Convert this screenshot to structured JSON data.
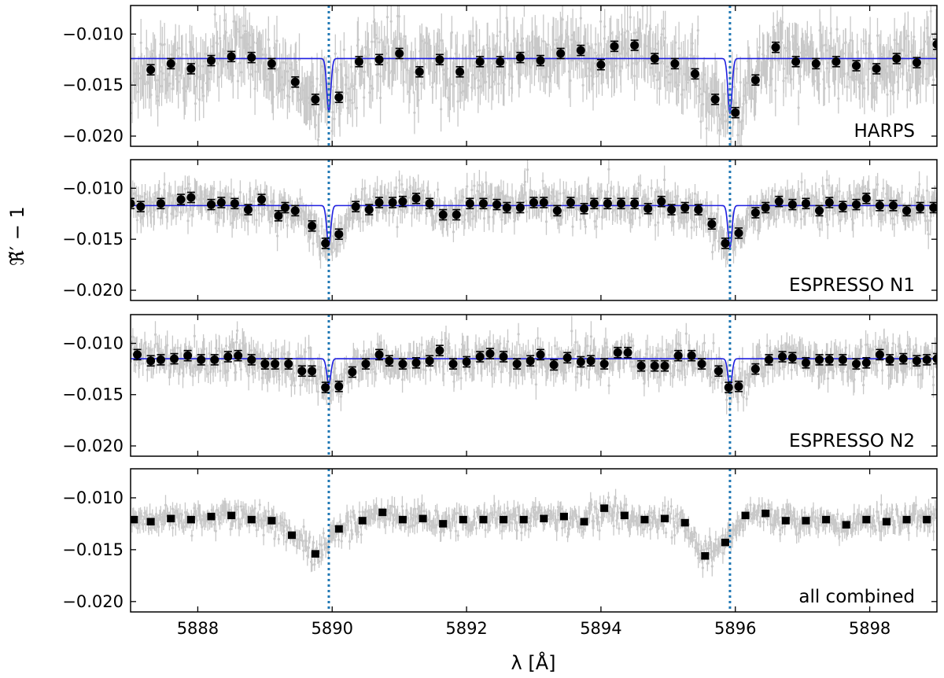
{
  "chart_data": {
    "type": "scatter",
    "xlabel": "λ [Å]",
    "ylabel": "ℜ̃′ − 1",
    "xlim": [
      5887.0,
      5899.0
    ],
    "ylim": [
      -0.021,
      -0.0072
    ],
    "x_ticks": [
      5888,
      5890,
      5892,
      5894,
      5896,
      5898
    ],
    "y_ticks": [
      -0.01,
      -0.015,
      -0.02
    ],
    "y_tick_labels": [
      "−0.010",
      "−0.015",
      "−0.020"
    ],
    "vertical_lines": [
      5889.95,
      5895.92
    ],
    "grid": false,
    "colors": {
      "raw": "#c8c8c8",
      "binned": "#000000",
      "model": "#1f1fe0",
      "vline": "#1f77b4"
    },
    "panels": [
      {
        "label": "HARPS",
        "model": {
          "baseline": -0.0124,
          "depths": [
            0.0052,
            0.0054
          ],
          "width": 0.03
        },
        "noise_sigma": 0.0028,
        "binned_err": 0.0005,
        "binned": [
          [
            5887.3,
            -0.0135
          ],
          [
            5887.6,
            -0.0129
          ],
          [
            5887.9,
            -0.0134
          ],
          [
            5888.2,
            -0.0126
          ],
          [
            5888.5,
            -0.0122
          ],
          [
            5888.8,
            -0.0123
          ],
          [
            5889.1,
            -0.0129
          ],
          [
            5889.45,
            -0.0147
          ],
          [
            5889.75,
            -0.0164
          ],
          [
            5890.1,
            -0.0162
          ],
          [
            5890.4,
            -0.0127
          ],
          [
            5890.7,
            -0.0125
          ],
          [
            5891.0,
            -0.0119
          ],
          [
            5891.3,
            -0.0137
          ],
          [
            5891.6,
            -0.0125
          ],
          [
            5891.9,
            -0.0137
          ],
          [
            5892.2,
            -0.0127
          ],
          [
            5892.5,
            -0.0127
          ],
          [
            5892.8,
            -0.0123
          ],
          [
            5893.1,
            -0.0126
          ],
          [
            5893.4,
            -0.0119
          ],
          [
            5893.7,
            -0.0116
          ],
          [
            5894.0,
            -0.013
          ],
          [
            5894.2,
            -0.0112
          ],
          [
            5894.5,
            -0.0111
          ],
          [
            5894.8,
            -0.0124
          ],
          [
            5895.1,
            -0.0129
          ],
          [
            5895.4,
            -0.0139
          ],
          [
            5895.7,
            -0.0164
          ],
          [
            5896.0,
            -0.0177
          ],
          [
            5896.3,
            -0.0145
          ],
          [
            5896.6,
            -0.0113
          ],
          [
            5896.9,
            -0.0127
          ],
          [
            5897.2,
            -0.0129
          ],
          [
            5897.5,
            -0.0127
          ],
          [
            5897.8,
            -0.0131
          ],
          [
            5898.1,
            -0.0134
          ],
          [
            5898.4,
            -0.0124
          ],
          [
            5898.7,
            -0.0128
          ],
          [
            5899.0,
            -0.011
          ]
        ]
      },
      {
        "label": "ESPRESSO N1",
        "model": {
          "baseline": -0.0117,
          "depths": [
            0.0039,
            0.0041
          ],
          "width": 0.03
        },
        "noise_sigma": 0.0016,
        "binned_err": 0.0005,
        "binned": [
          [
            5887.0,
            -0.0115
          ],
          [
            5887.15,
            -0.0118
          ],
          [
            5887.45,
            -0.0115
          ],
          [
            5887.75,
            -0.0111
          ],
          [
            5887.9,
            -0.0109
          ],
          [
            5888.2,
            -0.0116
          ],
          [
            5888.35,
            -0.0114
          ],
          [
            5888.55,
            -0.0115
          ],
          [
            5888.75,
            -0.0121
          ],
          [
            5888.95,
            -0.0111
          ],
          [
            5889.2,
            -0.0127
          ],
          [
            5889.3,
            -0.0119
          ],
          [
            5889.45,
            -0.0122
          ],
          [
            5889.7,
            -0.0137
          ],
          [
            5889.9,
            -0.0154
          ],
          [
            5890.1,
            -0.0145
          ],
          [
            5890.35,
            -0.0118
          ],
          [
            5890.55,
            -0.0121
          ],
          [
            5890.7,
            -0.0114
          ],
          [
            5890.9,
            -0.0114
          ],
          [
            5891.05,
            -0.0113
          ],
          [
            5891.25,
            -0.011
          ],
          [
            5891.45,
            -0.0115
          ],
          [
            5891.65,
            -0.0126
          ],
          [
            5891.85,
            -0.0126
          ],
          [
            5892.05,
            -0.0115
          ],
          [
            5892.25,
            -0.0115
          ],
          [
            5892.45,
            -0.0116
          ],
          [
            5892.6,
            -0.0119
          ],
          [
            5892.8,
            -0.0119
          ],
          [
            5893.0,
            -0.0114
          ],
          [
            5893.15,
            -0.0114
          ],
          [
            5893.35,
            -0.0122
          ],
          [
            5893.55,
            -0.0114
          ],
          [
            5893.75,
            -0.012
          ],
          [
            5893.9,
            -0.0115
          ],
          [
            5894.1,
            -0.0115
          ],
          [
            5894.3,
            -0.0115
          ],
          [
            5894.5,
            -0.0115
          ],
          [
            5894.7,
            -0.012
          ],
          [
            5894.9,
            -0.0113
          ],
          [
            5895.05,
            -0.0121
          ],
          [
            5895.25,
            -0.0119
          ],
          [
            5895.45,
            -0.0121
          ],
          [
            5895.65,
            -0.0135
          ],
          [
            5895.85,
            -0.0154
          ],
          [
            5896.05,
            -0.0144
          ],
          [
            5896.3,
            -0.0124
          ],
          [
            5896.45,
            -0.0119
          ],
          [
            5896.65,
            -0.0113
          ],
          [
            5896.85,
            -0.0116
          ],
          [
            5897.05,
            -0.0115
          ],
          [
            5897.25,
            -0.0122
          ],
          [
            5897.4,
            -0.0114
          ],
          [
            5897.6,
            -0.0118
          ],
          [
            5897.8,
            -0.0116
          ],
          [
            5897.95,
            -0.011
          ],
          [
            5898.15,
            -0.0117
          ],
          [
            5898.35,
            -0.0117
          ],
          [
            5898.55,
            -0.0122
          ],
          [
            5898.75,
            -0.0119
          ],
          [
            5898.95,
            -0.0119
          ]
        ]
      },
      {
        "label": "ESPRESSO N2",
        "model": {
          "baseline": -0.0115,
          "depths": [
            0.0025,
            0.0028
          ],
          "width": 0.03
        },
        "noise_sigma": 0.0016,
        "binned_err": 0.0005,
        "binned": [
          [
            5887.1,
            -0.0111
          ],
          [
            5887.3,
            -0.0117
          ],
          [
            5887.45,
            -0.0116
          ],
          [
            5887.65,
            -0.0115
          ],
          [
            5887.85,
            -0.0112
          ],
          [
            5888.05,
            -0.0116
          ],
          [
            5888.25,
            -0.0116
          ],
          [
            5888.45,
            -0.0113
          ],
          [
            5888.6,
            -0.0112
          ],
          [
            5888.8,
            -0.0116
          ],
          [
            5889.0,
            -0.012
          ],
          [
            5889.15,
            -0.012
          ],
          [
            5889.35,
            -0.012
          ],
          [
            5889.55,
            -0.0127
          ],
          [
            5889.7,
            -0.0127
          ],
          [
            5889.9,
            -0.0143
          ],
          [
            5890.1,
            -0.0142
          ],
          [
            5890.3,
            -0.0128
          ],
          [
            5890.5,
            -0.012
          ],
          [
            5890.7,
            -0.0111
          ],
          [
            5890.85,
            -0.0117
          ],
          [
            5891.05,
            -0.012
          ],
          [
            5891.25,
            -0.0119
          ],
          [
            5891.45,
            -0.0117
          ],
          [
            5891.6,
            -0.0107
          ],
          [
            5891.8,
            -0.012
          ],
          [
            5892.0,
            -0.0118
          ],
          [
            5892.2,
            -0.0113
          ],
          [
            5892.35,
            -0.011
          ],
          [
            5892.55,
            -0.0113
          ],
          [
            5892.75,
            -0.012
          ],
          [
            5892.95,
            -0.0117
          ],
          [
            5893.1,
            -0.0111
          ],
          [
            5893.3,
            -0.0121
          ],
          [
            5893.5,
            -0.0114
          ],
          [
            5893.7,
            -0.0118
          ],
          [
            5893.85,
            -0.0117
          ],
          [
            5894.05,
            -0.012
          ],
          [
            5894.25,
            -0.0109
          ],
          [
            5894.4,
            -0.0109
          ],
          [
            5894.6,
            -0.0122
          ],
          [
            5894.8,
            -0.0122
          ],
          [
            5894.95,
            -0.0122
          ],
          [
            5895.15,
            -0.0112
          ],
          [
            5895.35,
            -0.0112
          ],
          [
            5895.5,
            -0.012
          ],
          [
            5895.75,
            -0.0127
          ],
          [
            5895.9,
            -0.0143
          ],
          [
            5896.05,
            -0.0142
          ],
          [
            5896.3,
            -0.0125
          ],
          [
            5896.5,
            -0.0116
          ],
          [
            5896.7,
            -0.0113
          ],
          [
            5896.85,
            -0.0114
          ],
          [
            5897.05,
            -0.0119
          ],
          [
            5897.25,
            -0.0116
          ],
          [
            5897.4,
            -0.0116
          ],
          [
            5897.6,
            -0.0116
          ],
          [
            5897.8,
            -0.012
          ],
          [
            5897.95,
            -0.0119
          ],
          [
            5898.15,
            -0.0111
          ],
          [
            5898.3,
            -0.0116
          ],
          [
            5898.5,
            -0.0115
          ],
          [
            5898.7,
            -0.0117
          ],
          [
            5898.85,
            -0.0116
          ],
          [
            5899.0,
            -0.0115
          ]
        ]
      },
      {
        "label": "all combined",
        "model": null,
        "noise_sigma": 0.0011,
        "binned_err": 0.0003,
        "binned": [
          [
            5887.05,
            -0.0121
          ],
          [
            5887.3,
            -0.0123
          ],
          [
            5887.6,
            -0.012
          ],
          [
            5887.9,
            -0.0121
          ],
          [
            5888.2,
            -0.0118
          ],
          [
            5888.5,
            -0.0117
          ],
          [
            5888.8,
            -0.0121
          ],
          [
            5889.1,
            -0.0122
          ],
          [
            5889.4,
            -0.0136
          ],
          [
            5889.75,
            -0.0154
          ],
          [
            5890.1,
            -0.013
          ],
          [
            5890.45,
            -0.0122
          ],
          [
            5890.75,
            -0.0114
          ],
          [
            5891.05,
            -0.0121
          ],
          [
            5891.35,
            -0.012
          ],
          [
            5891.65,
            -0.0125
          ],
          [
            5891.95,
            -0.0121
          ],
          [
            5892.25,
            -0.0121
          ],
          [
            5892.55,
            -0.0121
          ],
          [
            5892.85,
            -0.0121
          ],
          [
            5893.15,
            -0.012
          ],
          [
            5893.45,
            -0.0118
          ],
          [
            5893.75,
            -0.0123
          ],
          [
            5894.05,
            -0.011
          ],
          [
            5894.35,
            -0.0117
          ],
          [
            5894.65,
            -0.0121
          ],
          [
            5894.95,
            -0.012
          ],
          [
            5895.25,
            -0.0124
          ],
          [
            5895.55,
            -0.0156
          ],
          [
            5895.85,
            -0.0143
          ],
          [
            5896.15,
            -0.0117
          ],
          [
            5896.45,
            -0.0115
          ],
          [
            5896.75,
            -0.0122
          ],
          [
            5897.05,
            -0.0122
          ],
          [
            5897.35,
            -0.0121
          ],
          [
            5897.65,
            -0.0126
          ],
          [
            5897.95,
            -0.0121
          ],
          [
            5898.25,
            -0.0123
          ],
          [
            5898.55,
            -0.0121
          ],
          [
            5898.85,
            -0.0121
          ]
        ]
      }
    ]
  }
}
